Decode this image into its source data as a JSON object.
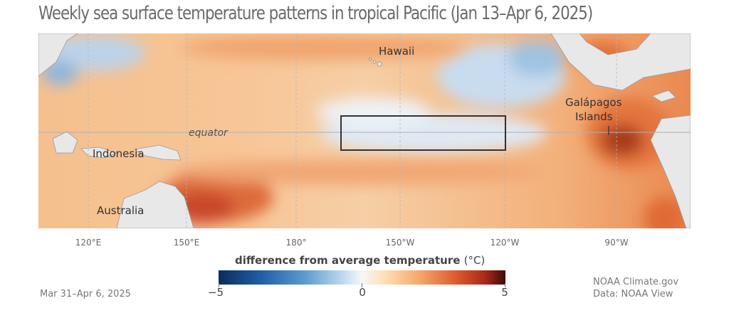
{
  "title": "Weekly sea surface temperature patterns in tropical Pacific (Jan 13–Apr 6, 2025)",
  "map": {
    "labels": {
      "hawaii": "Hawaii",
      "galapagos_line1": "Galápagos",
      "galapagos_line2": "Islands",
      "equator": "equator",
      "indonesia": "Indonesia",
      "australia": "Australia"
    },
    "longitude_labels": [
      "120°E",
      "150°E",
      "180°",
      "150°W",
      "120°W",
      "90°W"
    ]
  },
  "legend": {
    "title": "difference from average temperature ",
    "unit": "(°C)",
    "ticks": [
      "−5",
      "0",
      "5"
    ],
    "colors": [
      "#0b2d5b",
      "#1f5fa8",
      "#5d9ad0",
      "#c3ddef",
      "#f7f7f7",
      "#fde0b4",
      "#f6a76a",
      "#dc5a2c",
      "#a82919",
      "#3e0b0b"
    ]
  },
  "date_range": "Mar 31–Apr 6, 2025",
  "credit": {
    "line1": "NOAA Climate.gov",
    "line2": "Data: NOAA View"
  },
  "colors": {
    "land": "#e9e9e9",
    "warm": "#f2b27e",
    "cool": "#dce8f3",
    "box_outline": "#333333"
  }
}
